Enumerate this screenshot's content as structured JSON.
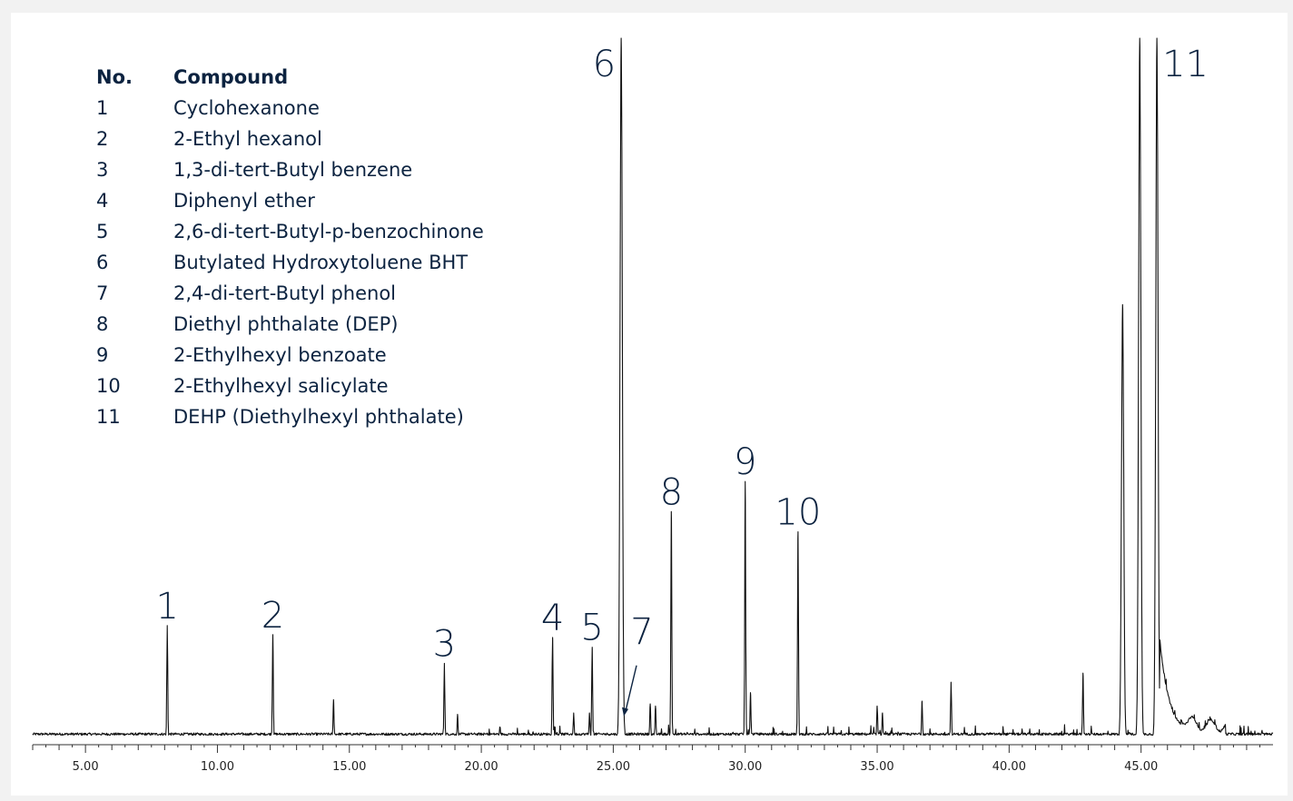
{
  "chart_data": {
    "type": "line",
    "title": "",
    "xlabel": "",
    "ylabel": "",
    "xlim": [
      3.0,
      50.0
    ],
    "ylim": [
      0,
      100
    ],
    "x_ticks": [
      "5.00",
      "10.00",
      "15.00",
      "20.00",
      "25.00",
      "30.00",
      "35.00",
      "40.00",
      "45.00"
    ],
    "grid": false,
    "legend": {
      "position": "top-left",
      "headers": {
        "number": "No.",
        "compound": "Compound"
      },
      "rows": [
        {
          "no": "1",
          "compound": "Cyclohexanone"
        },
        {
          "no": "2",
          "compound": "2-Ethyl hexanol"
        },
        {
          "no": "3",
          "compound": "1,3-di-tert-Butyl benzene"
        },
        {
          "no": "4",
          "compound": "Diphenyl ether"
        },
        {
          "no": "5",
          "compound": "2,6-di-tert-Butyl-p-benzochinone"
        },
        {
          "no": "6",
          "compound": "Butylated Hydroxytoluene BHT"
        },
        {
          "no": "7",
          "compound": "2,4-di-tert-Butyl phenol"
        },
        {
          "no": "8",
          "compound": "Diethyl phthalate (DEP)"
        },
        {
          "no": "9",
          "compound": "2-Ethylhexyl benzoate"
        },
        {
          "no": "10",
          "compound": "2-Ethylhexyl salicylate"
        },
        {
          "no": "11",
          "compound": "DEHP (Diethylhexyl phthalate)"
        }
      ]
    },
    "labeled_peaks": [
      {
        "label": "1",
        "x": 8.1,
        "y": 16.0
      },
      {
        "label": "2",
        "x": 12.1,
        "y": 14.7
      },
      {
        "label": "3",
        "x": 18.6,
        "y": 10.6
      },
      {
        "label": "4",
        "x": 22.7,
        "y": 14.3
      },
      {
        "label": "5",
        "x": 24.2,
        "y": 12.9
      },
      {
        "label": "6",
        "x": 25.3,
        "y": 100.0
      },
      {
        "label": "7",
        "x": 25.4,
        "y": 2.5
      },
      {
        "label": "8",
        "x": 27.2,
        "y": 32.3
      },
      {
        "label": "9",
        "x": 30.0,
        "y": 36.6
      },
      {
        "label": "10",
        "x": 32.0,
        "y": 29.4
      },
      {
        "label": "11",
        "x": 45.6,
        "y": 100.0
      }
    ],
    "other_peaks": [
      {
        "x": 7.9,
        "y": 2.1
      },
      {
        "x": 14.4,
        "y": 5.4
      },
      {
        "x": 17.4,
        "y": 1.2
      },
      {
        "x": 19.1,
        "y": 3.3
      },
      {
        "x": 23.5,
        "y": 3.5
      },
      {
        "x": 24.1,
        "y": 3.5
      },
      {
        "x": 26.4,
        "y": 4.8
      },
      {
        "x": 26.6,
        "y": 4.5
      },
      {
        "x": 28.0,
        "y": 1.8
      },
      {
        "x": 30.2,
        "y": 6.4
      },
      {
        "x": 31.0,
        "y": 2.6
      },
      {
        "x": 35.0,
        "y": 4.5
      },
      {
        "x": 35.2,
        "y": 3.5
      },
      {
        "x": 36.3,
        "y": 2.6
      },
      {
        "x": 36.7,
        "y": 5.2
      },
      {
        "x": 37.0,
        "y": 1.7
      },
      {
        "x": 37.8,
        "y": 7.9
      },
      {
        "x": 41.2,
        "y": 2.4
      },
      {
        "x": 42.8,
        "y": 9.2
      },
      {
        "x": 43.6,
        "y": 2.6
      },
      {
        "x": 44.3,
        "y": 61.9
      },
      {
        "x": 44.95,
        "y": 100.0
      }
    ]
  }
}
